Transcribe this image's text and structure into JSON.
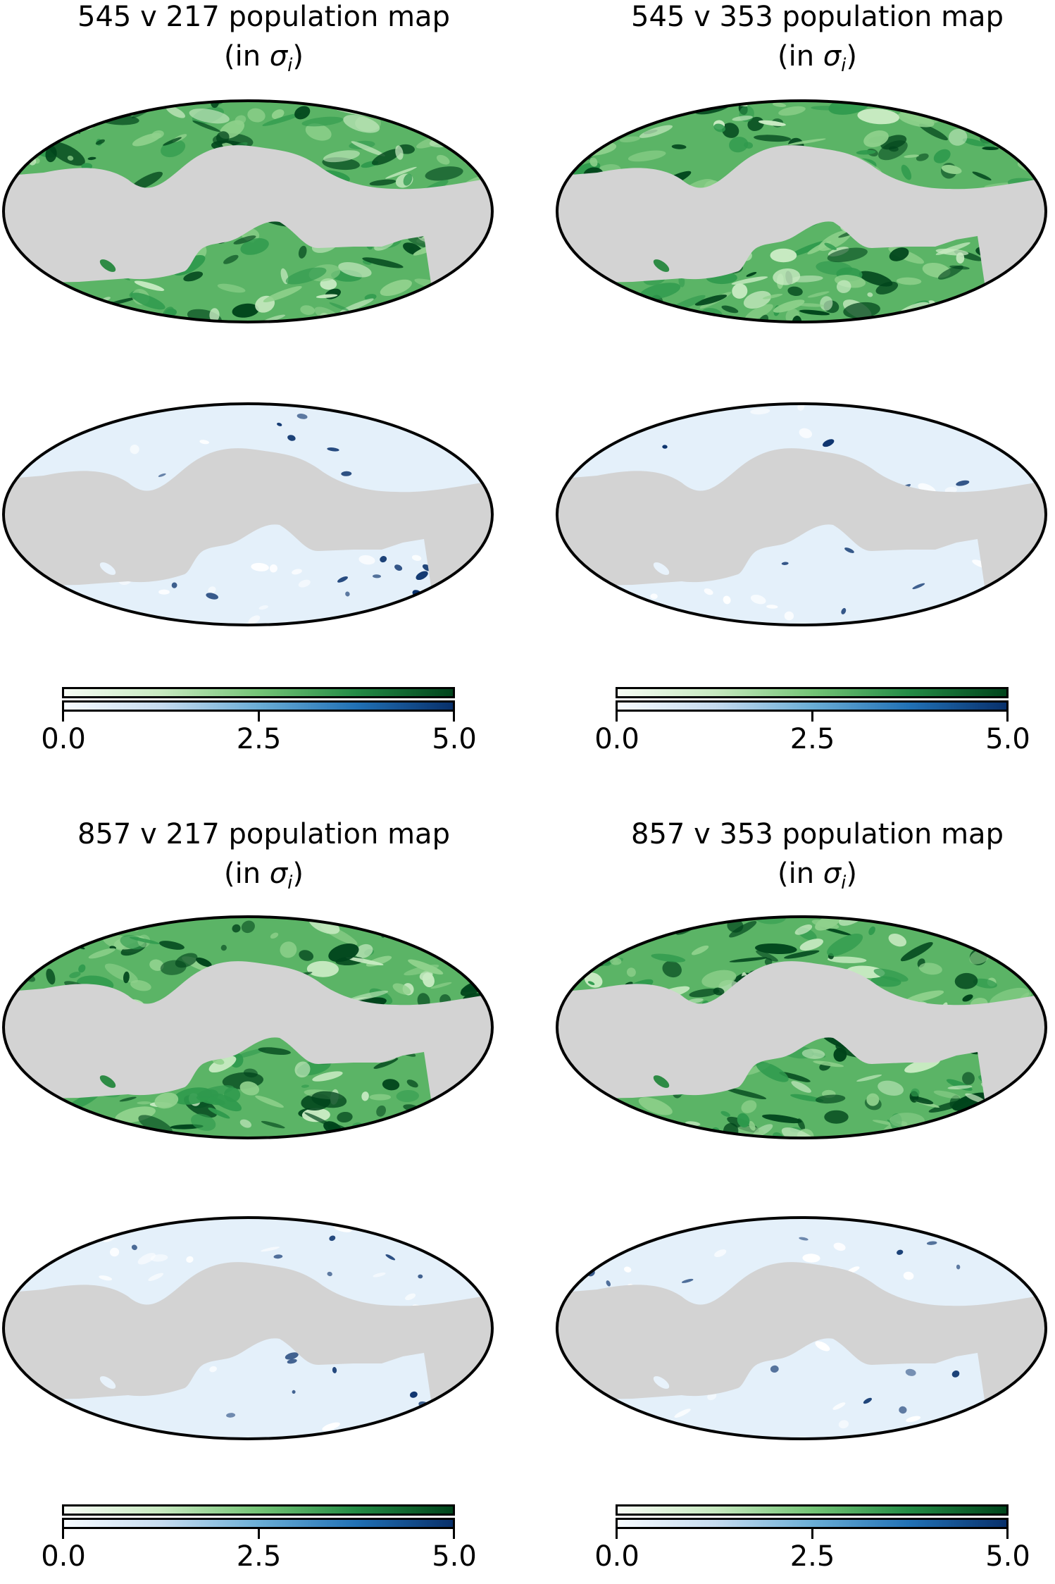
{
  "figure": {
    "panels": [
      {
        "id": "545v217",
        "title_line1": "545 v 217 population map",
        "title_prefix": "(in ",
        "title_sigma": "σ",
        "title_sub": "i",
        "title_suffix": ")",
        "maps": [
          {
            "name": "population-1",
            "colormap": "Greens"
          },
          {
            "name": "population-2",
            "colormap": "Blues"
          }
        ]
      },
      {
        "id": "545v353",
        "title_line1": "545 v 353 population map",
        "title_prefix": "(in ",
        "title_sigma": "σ",
        "title_sub": "i",
        "title_suffix": ")",
        "maps": [
          {
            "name": "population-1",
            "colormap": "Greens"
          },
          {
            "name": "population-2",
            "colormap": "Blues"
          }
        ]
      },
      {
        "id": "857v217",
        "title_line1": "857 v 217 population map",
        "title_prefix": "(in ",
        "title_sigma": "σ",
        "title_sub": "i",
        "title_suffix": ")",
        "maps": [
          {
            "name": "population-1",
            "colormap": "Greens"
          },
          {
            "name": "population-2",
            "colormap": "Blues"
          }
        ]
      },
      {
        "id": "857v353",
        "title_line1": "857 v 353 population map",
        "title_prefix": "(in ",
        "title_sigma": "σ",
        "title_sub": "i",
        "title_suffix": ")",
        "maps": [
          {
            "name": "population-1",
            "colormap": "Greens"
          },
          {
            "name": "population-2",
            "colormap": "Blues"
          }
        ]
      }
    ],
    "colorbar": {
      "ticks": [
        "0.0",
        "2.5",
        "5.0"
      ],
      "min": 0.0,
      "max": 5.0
    },
    "colors": {
      "mask_gray": "#d3d3d3",
      "outline": "#000000",
      "greens_low": "#f7fcf5",
      "greens_mid": "#74c476",
      "greens_high": "#00441b",
      "blues_low": "#f7fbff",
      "blues_mid": "#6baed6",
      "blues_high": "#08306b"
    }
  },
  "chart_data": {
    "type": "heatmap",
    "projection": "Mollweide",
    "title": "Population maps (in σ_i)",
    "layout": "2x2 grid of panels; each panel has two stacked full-sky maps (green population, blue population) and a shared double colorbar",
    "panels": [
      {
        "title": "545 v 217 population map (in σ_i)",
        "series": [
          "Greens population map",
          "Blues population map"
        ]
      },
      {
        "title": "545 v 353 population map (in σ_i)",
        "series": [
          "Greens population map",
          "Blues population map"
        ]
      },
      {
        "title": "857 v 217 population map (in σ_i)",
        "series": [
          "Greens population map",
          "Blues population map"
        ]
      },
      {
        "title": "857 v 353 population map (in σ_i)",
        "series": [
          "Greens population map",
          "Blues population map"
        ]
      }
    ],
    "colorbar": {
      "orientation": "horizontal",
      "range": [
        0.0,
        5.0
      ],
      "ticks": [
        0.0,
        2.5,
        5.0
      ],
      "colormaps": [
        "Greens",
        "Blues"
      ]
    },
    "mask": "Galactic plane masked in light gray (#d3d3d3)",
    "grid": false
  }
}
